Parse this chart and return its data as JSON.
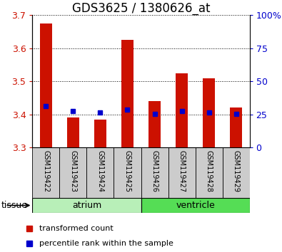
{
  "title": "GDS3625 / 1380626_at",
  "samples": [
    "GSM119422",
    "GSM119423",
    "GSM119424",
    "GSM119425",
    "GSM119426",
    "GSM119427",
    "GSM119428",
    "GSM119429"
  ],
  "red_values": [
    3.675,
    3.39,
    3.385,
    3.625,
    3.44,
    3.525,
    3.51,
    3.42
  ],
  "blue_values": [
    3.425,
    3.41,
    3.405,
    3.415,
    3.401,
    3.41,
    3.405,
    3.402
  ],
  "y_min": 3.3,
  "y_max": 3.7,
  "y_ticks": [
    3.3,
    3.4,
    3.5,
    3.6,
    3.7
  ],
  "right_ticks": [
    0,
    25,
    50,
    75,
    100
  ],
  "right_tick_labels": [
    "0",
    "25",
    "50",
    "75",
    "100%"
  ],
  "bar_bottom": 3.3,
  "tissues": [
    {
      "label": "atrium",
      "start": 0,
      "end": 4,
      "color": "#b8efb8"
    },
    {
      "label": "ventricle",
      "start": 4,
      "end": 8,
      "color": "#55dd55"
    }
  ],
  "tissue_label": "tissue",
  "red_color": "#cc1100",
  "blue_color": "#0000cc",
  "bar_width": 0.45,
  "blue_marker_size": 5,
  "grid_color": "#000000",
  "left_label_color": "#cc1100",
  "right_label_color": "#0000cc",
  "legend_red_label": "transformed count",
  "legend_blue_label": "percentile rank within the sample",
  "title_fontsize": 12,
  "tick_fontsize": 9,
  "sample_fontsize": 7,
  "legend_fontsize": 8,
  "tissue_fontsize": 9
}
